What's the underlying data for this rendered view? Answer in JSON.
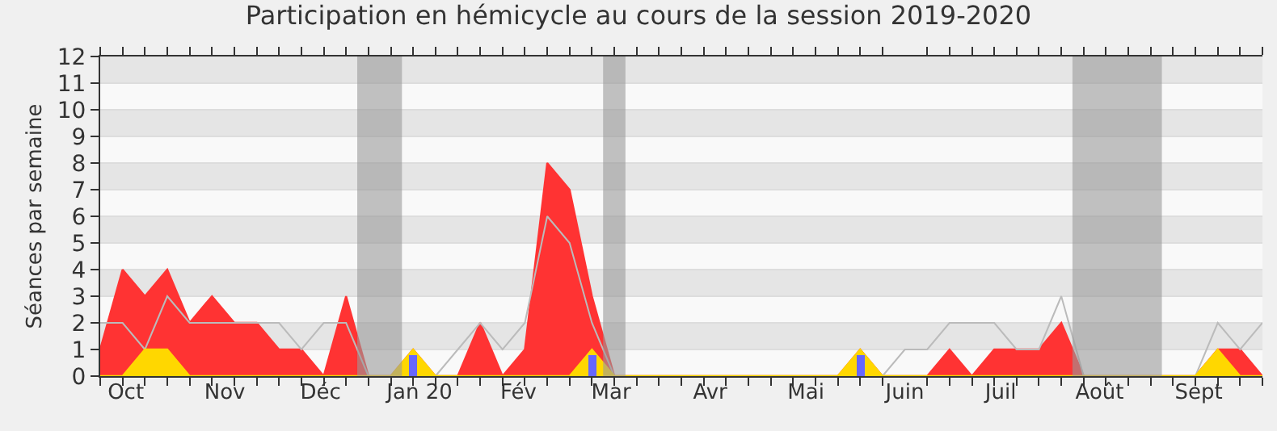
{
  "chart_data": {
    "type": "area",
    "title": "Participation en hémicycle au cours de la session 2019-2020",
    "ylabel": "Séances par semaine",
    "x": [
      "2019-09-23",
      "2019-09-30",
      "2019-10-07",
      "2019-10-14",
      "2019-10-21",
      "2019-10-28",
      "2019-11-04",
      "2019-11-11",
      "2019-11-18",
      "2019-11-25",
      "2019-12-02",
      "2019-12-09",
      "2019-12-16",
      "2019-12-23",
      "2019-12-30",
      "2020-01-06",
      "2020-01-13",
      "2020-01-20",
      "2020-01-27",
      "2020-02-03",
      "2020-02-10",
      "2020-02-17",
      "2020-02-24",
      "2020-03-02",
      "2020-03-09",
      "2020-03-16",
      "2020-03-23",
      "2020-03-30",
      "2020-04-06",
      "2020-04-13",
      "2020-04-20",
      "2020-04-27",
      "2020-05-04",
      "2020-05-11",
      "2020-05-18",
      "2020-05-25",
      "2020-06-01",
      "2020-06-08",
      "2020-06-15",
      "2020-06-22",
      "2020-06-29",
      "2020-07-06",
      "2020-07-13",
      "2020-07-20",
      "2020-07-27",
      "2020-08-03",
      "2020-08-10",
      "2020-08-17",
      "2020-08-24",
      "2020-08-31",
      "2020-09-07",
      "2020-09-14",
      "2020-09-21"
    ],
    "series": [
      {
        "color": "#ff3333",
        "values": [
          1,
          4,
          3,
          4,
          2,
          3,
          2,
          2,
          1,
          1,
          0,
          3,
          0,
          0,
          1,
          0,
          0,
          2,
          0,
          1,
          8,
          7,
          3,
          0,
          0,
          0,
          0,
          0,
          0,
          0,
          0,
          0,
          0,
          0,
          1,
          0,
          0,
          0,
          1,
          0,
          1,
          1,
          1,
          2,
          0,
          0,
          0,
          0,
          0,
          0,
          1,
          1,
          0
        ]
      },
      {
        "type": "line",
        "color": "#bbbbbb",
        "values": [
          2,
          2,
          1,
          3,
          2,
          2,
          2,
          2,
          2,
          1,
          2,
          2,
          0,
          0,
          null,
          0,
          1,
          2,
          1,
          2,
          6,
          5,
          2,
          0,
          0,
          0,
          0,
          0,
          0,
          0,
          0,
          0,
          0,
          0,
          null,
          0,
          1,
          1,
          2,
          2,
          2,
          1,
          1,
          3,
          0,
          0,
          0,
          0,
          0,
          0,
          2,
          1,
          2
        ]
      },
      {
        "color": "#ffd700",
        "values": [
          0,
          0,
          1,
          1,
          0,
          0,
          0,
          0,
          0,
          0,
          0,
          0,
          0,
          0,
          1,
          0,
          0,
          0,
          0,
          0,
          0,
          0,
          1,
          0,
          0,
          0,
          0,
          0,
          0,
          0,
          0,
          0,
          0,
          0,
          1,
          0,
          0,
          0,
          0,
          0,
          0,
          0,
          0,
          0,
          0,
          0,
          0,
          0,
          0,
          0,
          1,
          0,
          0
        ]
      },
      {
        "type": "bar",
        "color": "#6666ff",
        "x": [
          "2019-12-30",
          "2020-02-24",
          "2020-05-18"
        ],
        "values": [
          0.8,
          0.8,
          0.8
        ]
      }
    ],
    "bands": [
      {
        "axis": "x",
        "from": "2019-12-12T12:00",
        "to": "2019-12-26T12:00",
        "color": "#999999"
      },
      {
        "axis": "x",
        "from": "2020-02-27T12:00",
        "to": "2020-03-05T12:00",
        "color": "#999999"
      },
      {
        "axis": "x",
        "from": "2020-07-23T12:00",
        "to": "2020-08-20T12:00",
        "color": "#999999"
      }
    ],
    "xlim": [
      "2019-09-23",
      "2020-09-21"
    ],
    "xticks": [
      {
        "value": "2019-09-23",
        "label": null
      },
      {
        "value": "2019-09-30",
        "label": null
      },
      {
        "value": "2019-10-01",
        "label": "Oct"
      },
      {
        "value": "2019-10-07",
        "label": null
      },
      {
        "value": "2019-10-14",
        "label": null
      },
      {
        "value": "2019-10-21",
        "label": null
      },
      {
        "value": "2019-10-28",
        "label": null
      },
      {
        "value": "2019-11-01",
        "label": "Nov"
      },
      {
        "value": "2019-11-04",
        "label": null
      },
      {
        "value": "2019-11-11",
        "label": null
      },
      {
        "value": "2019-11-18",
        "label": null
      },
      {
        "value": "2019-11-25",
        "label": null
      },
      {
        "value": "2019-12-02",
        "label": null
      },
      {
        "value": "2019-12-01",
        "label": "Déc"
      },
      {
        "value": "2019-12-09",
        "label": null
      },
      {
        "value": "2019-12-16",
        "label": null
      },
      {
        "value": "2019-12-23",
        "label": null
      },
      {
        "value": "2019-12-30",
        "label": null
      },
      {
        "value": "2020-01-01",
        "label": "Jan 20"
      },
      {
        "value": "2020-01-06",
        "label": null
      },
      {
        "value": "2020-01-13",
        "label": null
      },
      {
        "value": "2020-01-20",
        "label": null
      },
      {
        "value": "2020-01-27",
        "label": null
      },
      {
        "value": "2020-02-01",
        "label": "Fév"
      },
      {
        "value": "2020-02-03",
        "label": null
      },
      {
        "value": "2020-02-10",
        "label": null
      },
      {
        "value": "2020-02-17",
        "label": null
      },
      {
        "value": "2020-02-24",
        "label": null
      },
      {
        "value": "2020-03-01",
        "label": "Mar"
      },
      {
        "value": "2020-03-02",
        "label": null
      },
      {
        "value": "2020-03-09",
        "label": null
      },
      {
        "value": "2020-03-16",
        "label": null
      },
      {
        "value": "2020-03-23",
        "label": null
      },
      {
        "value": "2020-03-30",
        "label": null
      },
      {
        "value": "2020-04-01",
        "label": "Avr"
      },
      {
        "value": "2020-04-06",
        "label": null
      },
      {
        "value": "2020-04-13",
        "label": null
      },
      {
        "value": "2020-04-20",
        "label": null
      },
      {
        "value": "2020-04-27",
        "label": null
      },
      {
        "value": "2020-05-01",
        "label": "Mai"
      },
      {
        "value": "2020-05-04",
        "label": null
      },
      {
        "value": "2020-05-11",
        "label": null
      },
      {
        "value": "2020-05-18",
        "label": null
      },
      {
        "value": "2020-05-25",
        "label": null
      },
      {
        "value": "2020-06-01",
        "label": "Juin"
      },
      {
        "value": "2020-06-08",
        "label": null
      },
      {
        "value": "2020-06-15",
        "label": null
      },
      {
        "value": "2020-06-22",
        "label": null
      },
      {
        "value": "2020-06-29",
        "label": null
      },
      {
        "value": "2020-07-01",
        "label": "Juil"
      },
      {
        "value": "2020-07-06",
        "label": null
      },
      {
        "value": "2020-07-13",
        "label": null
      },
      {
        "value": "2020-07-20",
        "label": null
      },
      {
        "value": "2020-07-27",
        "label": null
      },
      {
        "value": "2020-08-01",
        "label": "Août"
      },
      {
        "value": "2020-08-03",
        "label": null
      },
      {
        "value": "2020-08-10",
        "label": null
      },
      {
        "value": "2020-08-17",
        "label": null
      },
      {
        "value": "2020-08-24",
        "label": null
      },
      {
        "value": "2020-08-31",
        "label": null
      },
      {
        "value": "2020-09-01",
        "label": "Sept"
      },
      {
        "value": "2020-09-07",
        "label": null
      },
      {
        "value": "2020-09-14",
        "label": null
      },
      {
        "value": "2020-09-21",
        "label": null
      }
    ],
    "ylim": [
      0,
      12
    ],
    "yticks": [
      0,
      1,
      2,
      3,
      4,
      5,
      6,
      7,
      8,
      9,
      10,
      11,
      12
    ],
    "grid": "y"
  }
}
